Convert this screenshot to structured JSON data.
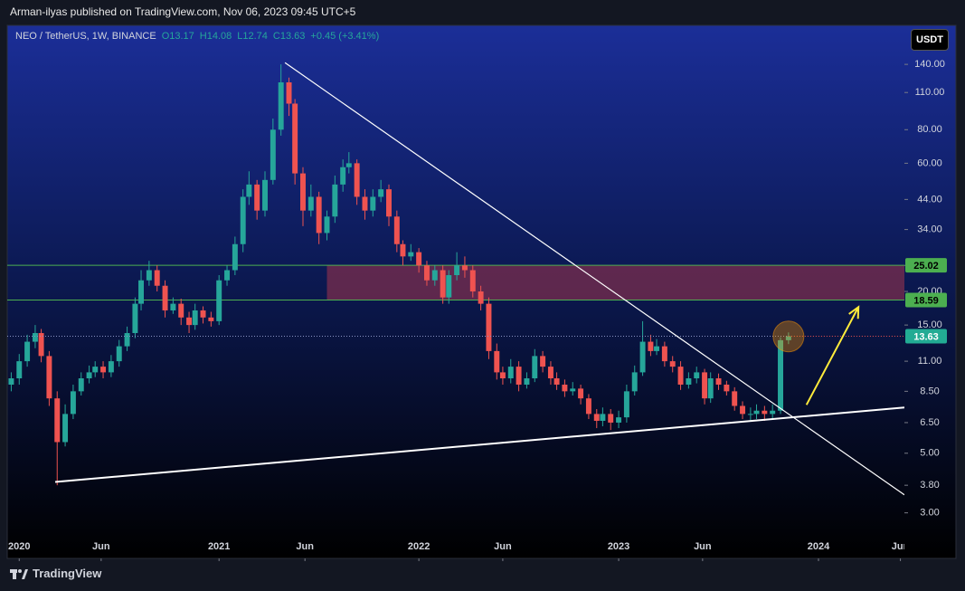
{
  "header": {
    "publisher": "Arman-ilyas published on TradingView.com, Nov 06, 2023 09:45 UTC+5"
  },
  "footer": {
    "logo": "TradingView"
  },
  "chart_data": {
    "type": "candlestick",
    "symbol": "NEO / TetherUS, 1W, BINANCE",
    "legend_values": [
      "O13.17",
      "H14.08",
      "L12.74",
      "C13.63",
      "+0.45 (+3.41%)"
    ],
    "currency": "USDT",
    "x": [
      2019.96,
      2020.0,
      2020.04,
      2020.08,
      2020.11,
      2020.15,
      2020.19,
      2020.23,
      2020.27,
      2020.31,
      2020.35,
      2020.38,
      2020.42,
      2020.46,
      2020.5,
      2020.54,
      2020.58,
      2020.61,
      2020.65,
      2020.69,
      2020.73,
      2020.77,
      2020.81,
      2020.85,
      2020.88,
      2020.92,
      2020.96,
      2021.0,
      2021.04,
      2021.08,
      2021.12,
      2021.15,
      2021.19,
      2021.23,
      2021.27,
      2021.31,
      2021.35,
      2021.38,
      2021.42,
      2021.46,
      2021.5,
      2021.54,
      2021.58,
      2021.62,
      2021.65,
      2021.69,
      2021.73,
      2021.77,
      2021.81,
      2021.85,
      2021.89,
      2021.92,
      2021.96,
      2022.0,
      2022.04,
      2022.08,
      2022.12,
      2022.15,
      2022.19,
      2022.23,
      2022.27,
      2022.31,
      2022.35,
      2022.39,
      2022.42,
      2022.46,
      2022.5,
      2022.54,
      2022.58,
      2022.62,
      2022.66,
      2022.69,
      2022.73,
      2022.77,
      2022.81,
      2022.85,
      2022.89,
      2022.92,
      2022.96,
      2023.0,
      2023.04,
      2023.08,
      2023.12,
      2023.16,
      2023.19,
      2023.23,
      2023.27,
      2023.31,
      2023.35,
      2023.39,
      2023.43,
      2023.46,
      2023.5,
      2023.54,
      2023.58,
      2023.62,
      2023.66,
      2023.69,
      2023.73,
      2023.77,
      2023.81,
      2023.85
    ],
    "open": [
      9,
      9.5,
      11,
      13,
      14,
      11.5,
      8,
      5.5,
      7,
      8.5,
      9.5,
      10,
      10.5,
      10,
      11,
      12.5,
      14,
      18,
      22,
      24,
      21,
      17,
      18,
      16,
      15,
      17,
      16,
      15.5,
      22,
      24,
      30,
      45,
      50,
      40,
      52,
      80,
      120,
      100,
      55,
      40,
      45,
      33,
      38,
      50,
      58,
      60,
      45,
      40,
      45,
      48,
      38,
      30,
      27,
      28,
      25,
      22,
      24,
      19,
      23,
      25,
      24,
      20,
      18,
      12,
      10,
      9.5,
      10.5,
      9,
      9.5,
      11.5,
      10.5,
      9.5,
      9,
      8.5,
      8.7,
      8,
      7,
      6.6,
      7,
      6.5,
      6.8,
      8.5,
      10,
      13,
      12,
      12.5,
      11,
      10.5,
      9,
      9.5,
      10,
      8,
      9.5,
      9,
      8.5,
      7.5,
      7,
      7,
      7.2,
      7,
      7.2,
      13.17
    ],
    "high": [
      10,
      11.7,
      13.8,
      15,
      14.5,
      12,
      8.5,
      7.6,
      9,
      10,
      10.6,
      11,
      11,
      11.6,
      13.2,
      14.8,
      19,
      24,
      26,
      25,
      22,
      19,
      18.8,
      16.8,
      18,
      17.6,
      16.8,
      23,
      25,
      32,
      48,
      56,
      52,
      56,
      88,
      140,
      125,
      104,
      58,
      50,
      47,
      40,
      54,
      62,
      66,
      62,
      48,
      48,
      52,
      50,
      40,
      31,
      30,
      29,
      26,
      25,
      25,
      24,
      28,
      27,
      25,
      21,
      19,
      12.8,
      10.5,
      11.2,
      11,
      10,
      12.2,
      12,
      11,
      10,
      9.4,
      9.2,
      9,
      8.3,
      7.3,
      7.4,
      7.3,
      7.2,
      9,
      10.6,
      15.5,
      13.8,
      13.3,
      13,
      11.5,
      11,
      10,
      10.5,
      10.3,
      10,
      9.9,
      9.3,
      8.8,
      7.8,
      7.4,
      7.6,
      7.5,
      7.6,
      13.5,
      14.08
    ],
    "low": [
      8.5,
      9,
      10.5,
      12.3,
      10.9,
      7.5,
      3.8,
      5.3,
      6.7,
      8.2,
      9.1,
      9.6,
      9.5,
      9.6,
      10.5,
      12,
      13.4,
      17,
      21,
      20,
      16,
      16.5,
      15,
      14,
      14.4,
      15.2,
      14.8,
      15,
      21,
      23,
      28,
      42,
      37,
      38,
      50,
      76,
      90,
      50,
      35,
      38,
      30,
      31,
      36,
      47,
      55,
      42,
      37,
      38,
      43,
      35,
      28,
      25,
      26,
      23.5,
      21,
      21,
      18,
      18,
      22,
      22.5,
      19,
      17,
      11.2,
      9.4,
      9,
      9.1,
      8.5,
      8.7,
      9.2,
      10,
      9,
      8.6,
      8.1,
      8.2,
      7.6,
      6.7,
      6.2,
      6.3,
      6.1,
      6.2,
      6.5,
      8.2,
      9.7,
      11.5,
      11.6,
      10.5,
      10,
      8.6,
      8.7,
      9.1,
      7.6,
      7.7,
      8.6,
      8.2,
      7.2,
      6.7,
      6.6,
      6.7,
      6.6,
      6.7,
      7,
      12.74
    ],
    "close": [
      9.5,
      11,
      13,
      14,
      11.5,
      8,
      5.5,
      7,
      8.5,
      9.5,
      10,
      10.5,
      10,
      11,
      12.5,
      14,
      18,
      22,
      24,
      21,
      17,
      18,
      16,
      15,
      17,
      16,
      15.5,
      22,
      24,
      30,
      45,
      50,
      40,
      52,
      80,
      120,
      100,
      55,
      40,
      45,
      33,
      38,
      50,
      58,
      60,
      45,
      40,
      45,
      48,
      38,
      30,
      27,
      28,
      25,
      22,
      24,
      19,
      23,
      25,
      24,
      20,
      18,
      12,
      10,
      9.5,
      10.5,
      9,
      9.5,
      11.5,
      10.5,
      9.5,
      9,
      8.5,
      8.7,
      8,
      7,
      6.6,
      7,
      6.5,
      6.8,
      8.5,
      10,
      13,
      12,
      12.5,
      11,
      10.5,
      9,
      9.5,
      10,
      8,
      9.5,
      9,
      8.5,
      7.5,
      7,
      7,
      7.2,
      7,
      7.2,
      13.17,
      13.63
    ],
    "up_color": "#26a69a",
    "down_color": "#ef5350",
    "xlim": [
      2019.94,
      2024.43
    ],
    "xticks": [
      2020,
      {
        "value": 2020.41,
        "label": "Jun"
      },
      2021,
      {
        "value": 2021.43,
        "label": "Jun"
      },
      2022,
      {
        "value": 2022.42,
        "label": "Jun"
      },
      2023,
      {
        "value": 2023.42,
        "label": "Jun"
      },
      2024,
      {
        "value": 2024.41,
        "label": "Jun"
      }
    ],
    "ylim": [
      2.03,
      195.6
    ],
    "log_scale": true,
    "yticks": [
      {
        "value": 140,
        "label": "140.00"
      },
      {
        "value": 110,
        "label": "110.00"
      },
      {
        "value": 80,
        "label": "80.00"
      },
      {
        "value": 60,
        "label": "60.00"
      },
      {
        "value": 44,
        "label": "44.00"
      },
      {
        "value": 34,
        "label": "34.00"
      },
      {
        "value": 25,
        "label": "25.00"
      },
      {
        "value": 20,
        "label": "20.00"
      },
      {
        "value": 15,
        "label": "15.00"
      },
      {
        "value": 11,
        "label": "11.00"
      },
      {
        "value": 8.5,
        "label": "8.50"
      },
      {
        "value": 6.5,
        "label": "6.50"
      },
      {
        "value": 5,
        "label": "5.00"
      },
      {
        "value": 3.8,
        "label": "3.80"
      },
      {
        "value": 3,
        "label": "3.00"
      }
    ],
    "levels": [
      {
        "value": 25.02,
        "color": "#4caf50"
      },
      {
        "value": 18.59,
        "color": "#4caf50"
      }
    ],
    "zone": {
      "x0": 2021.54,
      "color": "#7b2d4e"
    },
    "last_price_color": "#22ab94",
    "trendlines": [
      {
        "x": [
          2021.33,
          2024.43
        ],
        "y": [
          142,
          3.5
        ],
        "color": "#ffffff",
        "width": 1.2
      },
      {
        "x": [
          2020.18,
          2024.43
        ],
        "y": [
          3.91,
          7.4
        ],
        "color": "#ffffff",
        "width": 2
      }
    ],
    "arrow": {
      "x": [
        2023.94,
        2024.2
      ],
      "y": [
        7.57,
        17.5
      ],
      "color": "#ffeb3b"
    },
    "highlight": {
      "x": 2023.85,
      "y": 13.6,
      "color": "#ff9800"
    }
  }
}
